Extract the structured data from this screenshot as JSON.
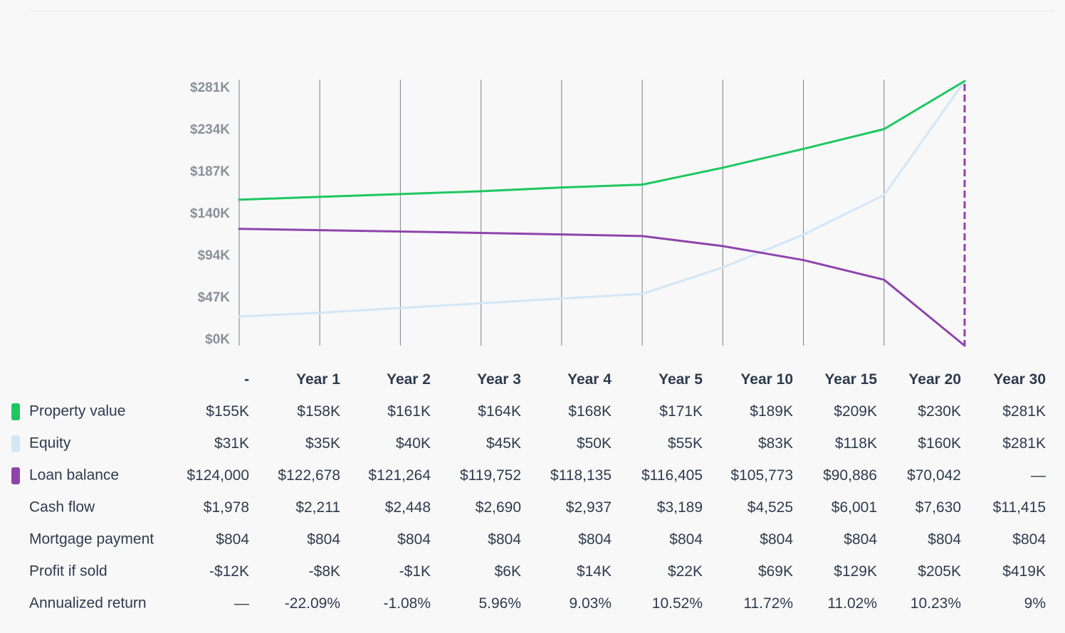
{
  "chart_data": {
    "type": "line",
    "title": "",
    "xlabel": "",
    "ylabel": "",
    "categories": [
      "-",
      "Year 1",
      "Year 2",
      "Year 3",
      "Year 4",
      "Year 5",
      "Year 10",
      "Year 15",
      "Year 20",
      "Year 30"
    ],
    "y_ticks": [
      "$0K",
      "$47K",
      "$94K",
      "$140K",
      "$187K",
      "$234K",
      "$281K"
    ],
    "ylim": [
      0,
      281
    ],
    "grid": "vertical",
    "legend": "table-below",
    "series": [
      {
        "name": "Property value",
        "color": "#1ec760",
        "values": [
          155,
          158,
          161,
          164,
          168,
          171,
          189,
          209,
          230,
          281
        ]
      },
      {
        "name": "Equity",
        "color": "#d3e6f7",
        "values": [
          31,
          35,
          40,
          45,
          50,
          55,
          83,
          118,
          160,
          281
        ]
      },
      {
        "name": "Loan balance",
        "color": "#8f44ad",
        "values": [
          124,
          122.678,
          121.264,
          119.752,
          118.135,
          116.405,
          105.773,
          90.886,
          70.042,
          0
        ]
      }
    ],
    "marker": {
      "category": "Year 30",
      "color": "#8f44ad"
    }
  },
  "table": {
    "header_first": "",
    "headers": [
      "-",
      "Year 1",
      "Year 2",
      "Year 3",
      "Year 4",
      "Year 5",
      "Year 10",
      "Year 15",
      "Year 20",
      "Year 30"
    ],
    "rows": [
      {
        "label": "Property value",
        "swatch": "#1ec760",
        "values": [
          "$155K",
          "$158K",
          "$161K",
          "$164K",
          "$168K",
          "$171K",
          "$189K",
          "$209K",
          "$230K",
          "$281K"
        ]
      },
      {
        "label": "Equity",
        "swatch": "#d3e6f7",
        "values": [
          "$31K",
          "$35K",
          "$40K",
          "$45K",
          "$50K",
          "$55K",
          "$83K",
          "$118K",
          "$160K",
          "$281K"
        ]
      },
      {
        "label": "Loan balance",
        "swatch": "#8f44ad",
        "values": [
          "$124,000",
          "$122,678",
          "$121,264",
          "$119,752",
          "$118,135",
          "$116,405",
          "$105,773",
          "$90,886",
          "$70,042",
          "—"
        ]
      },
      {
        "label": "Cash flow",
        "swatch": "",
        "values": [
          "$1,978",
          "$2,211",
          "$2,448",
          "$2,690",
          "$2,937",
          "$3,189",
          "$4,525",
          "$6,001",
          "$7,630",
          "$11,415"
        ]
      },
      {
        "label": "Mortgage payment",
        "swatch": "",
        "values": [
          "$804",
          "$804",
          "$804",
          "$804",
          "$804",
          "$804",
          "$804",
          "$804",
          "$804",
          "$804"
        ]
      },
      {
        "label": "Profit if sold",
        "swatch": "",
        "values": [
          "-$12K",
          "-$8K",
          "-$1K",
          "$6K",
          "$14K",
          "$22K",
          "$69K",
          "$129K",
          "$205K",
          "$419K"
        ]
      },
      {
        "label": "Annualized return",
        "swatch": "",
        "values": [
          "—",
          "-22.09%",
          "-1.08%",
          "5.96%",
          "9.03%",
          "10.52%",
          "11.72%",
          "11.02%",
          "10.23%",
          "9%"
        ]
      }
    ]
  }
}
